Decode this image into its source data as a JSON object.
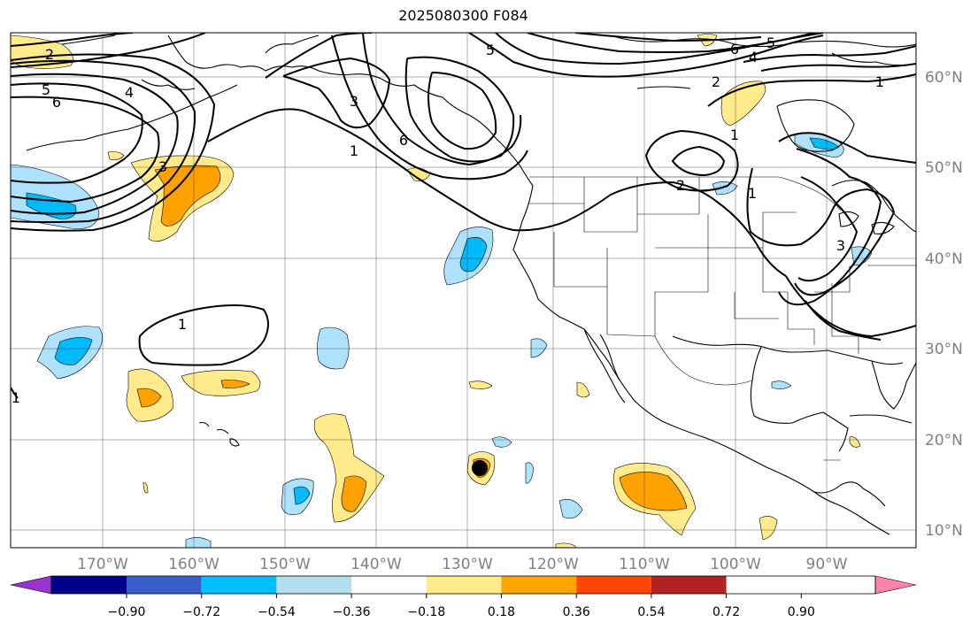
{
  "title": "2025080300 F084",
  "colors": {
    "fill_neg_018_036": "#aee1fc",
    "fill_neg_036_054": "#00bbf9",
    "fill_pos_018_036": "#ffea8c",
    "fill_pos_036_054": "#ffa200",
    "colorbar": [
      "#9a32cc",
      "#00008b",
      "#3a5fcd",
      "#00bfff",
      "#b2dfee",
      "#ffffff",
      "#ffec8b",
      "#ffa500",
      "#ff4500",
      "#b22222",
      "#ff82ab"
    ]
  },
  "longitude_labels": [
    "170°W",
    "160°W",
    "150°W",
    "140°W",
    "130°W",
    "120°W",
    "110°W",
    "100°W",
    "90°W"
  ],
  "latitude_labels": [
    "60°N",
    "50°N",
    "40°N",
    "30°N",
    "20°N",
    "10°N"
  ],
  "colorbar_ticks": [
    "−0.90",
    "−0.72",
    "−0.54",
    "−0.36",
    "−0.18",
    "0.18",
    "0.36",
    "0.54",
    "0.72",
    "0.90"
  ],
  "contour_labels": [
    "2",
    "5",
    "6",
    "4",
    "3",
    "1",
    "5",
    "3",
    "6",
    "1",
    "6",
    "4",
    "5",
    "2",
    "1",
    "2",
    "1",
    "3",
    "1",
    "1"
  ],
  "storm_marker": "tropical-cyclone-position"
}
